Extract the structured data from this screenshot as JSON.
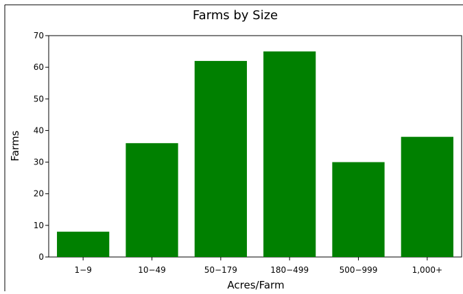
{
  "chart_data": {
    "type": "bar",
    "title": "Farms by Size",
    "xlabel": "Acres/Farm",
    "ylabel": "Farms",
    "categories": [
      "1−9",
      "10−49",
      "50−179",
      "180−499",
      "500−999",
      "1,000+"
    ],
    "values": [
      8,
      36,
      62,
      65,
      30,
      38
    ],
    "ylim": [
      0,
      70
    ],
    "yticks": [
      0,
      10,
      20,
      30,
      40,
      50,
      60,
      70
    ],
    "grid": false,
    "legend": "none",
    "bar_color": "#008000"
  }
}
